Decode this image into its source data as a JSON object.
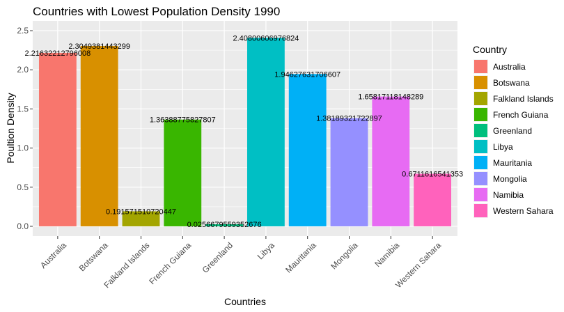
{
  "chart_data": {
    "type": "bar",
    "title": "Countries with Lowest Population Density 1990",
    "xlabel": "Countries",
    "ylabel": "Poultion Density",
    "ylim": [
      0,
      2.5
    ],
    "yticks": [
      0.0,
      0.5,
      1.0,
      1.5,
      2.0,
      2.5
    ],
    "ytick_labels": [
      "0.0",
      "0.5",
      "1.0",
      "1.5",
      "2.0",
      "2.5"
    ],
    "grid": true,
    "legend": {
      "title": "Country",
      "placement": "right"
    },
    "categories": [
      "Australia",
      "Botswana",
      "Falkland Islands",
      "French Guiana",
      "Greenland",
      "Libya",
      "Mauritania",
      "Mongolia",
      "Namibia",
      "Western Sahara"
    ],
    "values": [
      2.21632212796008,
      2.3049381443299,
      0.191571510720447,
      1.36388775827807,
      0.0256679559352676,
      2.40800606976824,
      1.94627631706607,
      1.38189321722897,
      1.65817118148289,
      0.6711616541353
    ],
    "value_labels": [
      "2.21632212796008",
      "2.3049381443299",
      "0.191571510720447",
      "1.36388775827807",
      "0.0256679559352676",
      "2.40800606976824",
      "1.94627631706607",
      "1.38189321722897",
      "1.65817118148289",
      "0.6711616541353"
    ],
    "colors": [
      "#F8766D",
      "#D89000",
      "#A3A500",
      "#39B600",
      "#00BF7D",
      "#00BFC4",
      "#00B0F6",
      "#9590FF",
      "#E76BF3",
      "#FF62BC"
    ]
  }
}
